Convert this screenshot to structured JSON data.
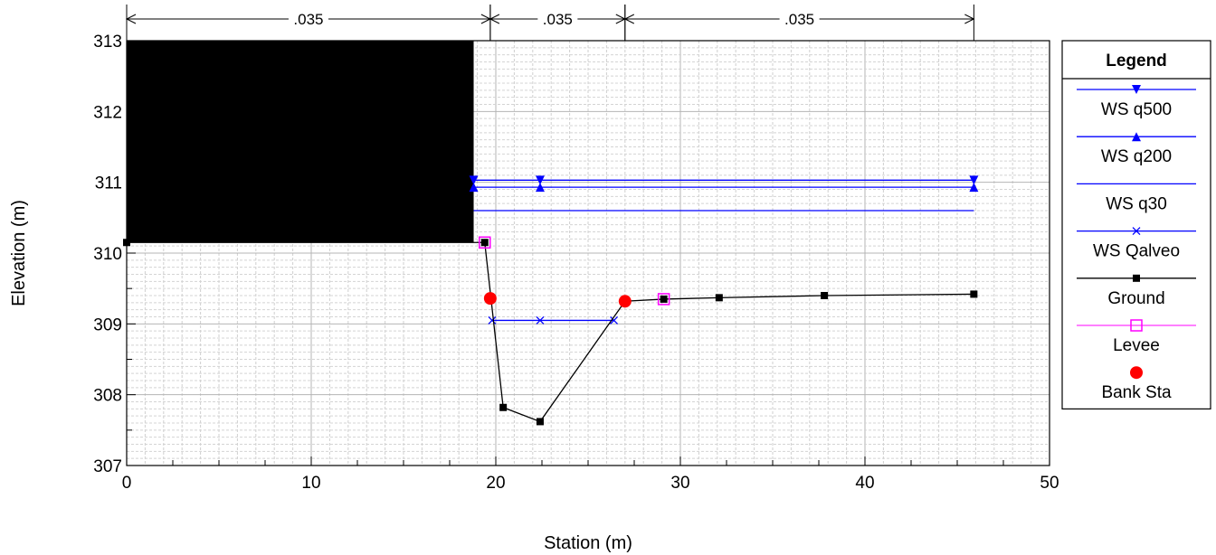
{
  "chart_data": {
    "type": "line",
    "xlabel": "Station (m)",
    "ylabel": "Elevation (m)",
    "xlim": [
      0,
      50
    ],
    "ylim": [
      307,
      313
    ],
    "x_ticks": [
      "0",
      "10",
      "20",
      "30",
      "40",
      "50"
    ],
    "y_ticks": [
      "307",
      "308",
      "309",
      "310",
      "311",
      "312",
      "313"
    ],
    "grid": true,
    "manning_n": [
      {
        "from": 0,
        "to": 19.7,
        "label": ".035"
      },
      {
        "from": 19.7,
        "to": 27.0,
        "label": ".035"
      },
      {
        "from": 27.0,
        "to": 45.9,
        "label": ".035"
      }
    ],
    "obstruction": {
      "x": [
        0,
        18.8
      ],
      "y": [
        310.15,
        313
      ],
      "color": "#000000"
    },
    "legend": {
      "title": "Legend",
      "position": "right",
      "entries": [
        {
          "name": "WS q500",
          "color": "#0000ff",
          "marker": "triangle-down"
        },
        {
          "name": "WS q200",
          "color": "#0000ff",
          "marker": "triangle-up"
        },
        {
          "name": "WS q30",
          "color": "#0000ff",
          "marker": "none"
        },
        {
          "name": "WS Qalveo",
          "color": "#0000ff",
          "marker": "x"
        },
        {
          "name": "Ground",
          "color": "#000000",
          "marker": "square"
        },
        {
          "name": "Levee",
          "color": "#ff00ff",
          "marker": "open-square"
        },
        {
          "name": "Bank Sta",
          "color": "#ff0000",
          "marker": "circle"
        }
      ]
    },
    "series": [
      {
        "name": "WS q500",
        "color": "#0000ff",
        "marker": "triangle-down",
        "x": [
          18.8,
          22.4,
          45.9
        ],
        "y": [
          311.03,
          311.03,
          311.03
        ]
      },
      {
        "name": "WS q200",
        "color": "#0000ff",
        "marker": "triangle-up",
        "x": [
          18.8,
          22.4,
          45.9
        ],
        "y": [
          310.93,
          310.93,
          310.93
        ]
      },
      {
        "name": "WS q30",
        "color": "#0000ff",
        "marker": "none",
        "x": [
          18.8,
          45.9
        ],
        "y": [
          310.6,
          310.6
        ]
      },
      {
        "name": "WS Qalveo",
        "color": "#0000ff",
        "marker": "x",
        "x": [
          19.8,
          22.4,
          26.4
        ],
        "y": [
          309.05,
          309.05,
          309.05
        ]
      },
      {
        "name": "Ground",
        "color": "#000000",
        "marker": "square",
        "x": [
          0,
          19.4,
          20.4,
          22.4,
          27.0,
          29.1,
          32.1,
          37.8,
          45.9
        ],
        "y": [
          310.15,
          310.15,
          307.82,
          307.62,
          309.32,
          309.35,
          309.37,
          309.4,
          309.42
        ]
      },
      {
        "name": "Levee",
        "color": "#ff00ff",
        "marker": "open-square",
        "x": [
          19.4,
          29.1
        ],
        "y": [
          310.15,
          309.35
        ]
      },
      {
        "name": "Bank Sta",
        "color": "#ff0000",
        "marker": "circle",
        "x": [
          19.7,
          27.0
        ],
        "y": [
          309.36,
          309.32
        ]
      }
    ]
  }
}
